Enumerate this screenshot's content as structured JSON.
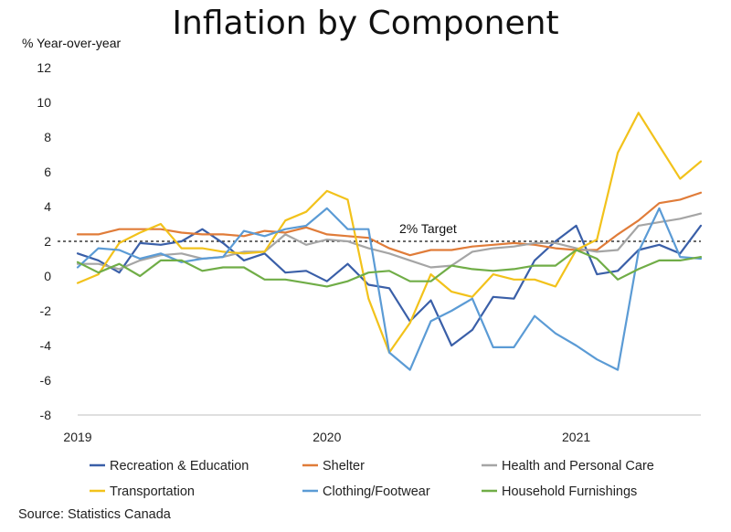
{
  "chart_data": {
    "type": "line",
    "title": "Inflation by Component",
    "ylabel": "% Year-over-year",
    "ylim": [
      -8,
      12
    ],
    "yticks": [
      12,
      10,
      8,
      6,
      4,
      2,
      0,
      -2,
      -4,
      -6,
      -8
    ],
    "x": [
      "2019-01",
      "2019-02",
      "2019-03",
      "2019-04",
      "2019-05",
      "2019-06",
      "2019-07",
      "2019-08",
      "2019-09",
      "2019-10",
      "2019-11",
      "2019-12",
      "2020-01",
      "2020-02",
      "2020-03",
      "2020-04",
      "2020-05",
      "2020-06",
      "2020-07",
      "2020-08",
      "2020-09",
      "2020-10",
      "2020-11",
      "2020-12",
      "2021-01",
      "2021-02",
      "2021-03",
      "2021-04",
      "2021-05",
      "2021-06",
      "2021-07"
    ],
    "xtick_labels": [
      {
        "at": "2019-01",
        "label": "2019"
      },
      {
        "at": "2020-01",
        "label": "2020"
      },
      {
        "at": "2021-01",
        "label": "2021"
      }
    ],
    "grid": false,
    "legend_position": "bottom",
    "series": [
      {
        "name": "Recreation & Education",
        "color": "#3a5fa8",
        "values": [
          1.3,
          0.9,
          0.2,
          1.9,
          1.8,
          2.0,
          2.7,
          1.9,
          0.9,
          1.3,
          0.2,
          0.3,
          -0.3,
          0.7,
          -0.5,
          -0.7,
          -2.6,
          -1.4,
          -4.0,
          -3.1,
          -1.2,
          -1.3,
          0.9,
          2.0,
          2.9,
          0.1,
          0.3,
          1.5,
          1.8,
          1.3,
          2.9
        ]
      },
      {
        "name": "Shelter",
        "color": "#e07c39",
        "values": [
          2.4,
          2.4,
          2.7,
          2.7,
          2.7,
          2.5,
          2.4,
          2.4,
          2.3,
          2.6,
          2.5,
          2.8,
          2.4,
          2.3,
          2.2,
          1.6,
          1.2,
          1.5,
          1.5,
          1.7,
          1.8,
          1.9,
          1.8,
          1.6,
          1.5,
          1.5,
          2.4,
          3.2,
          4.2,
          4.4,
          4.8
        ]
      },
      {
        "name": "Health and Personal Care",
        "color": "#a5a5a5",
        "values": [
          0.7,
          0.7,
          0.4,
          0.9,
          1.2,
          1.3,
          1.0,
          1.1,
          1.4,
          1.4,
          2.4,
          1.8,
          2.1,
          2.0,
          1.6,
          1.3,
          0.9,
          0.5,
          0.6,
          1.4,
          1.6,
          1.7,
          1.9,
          1.9,
          1.6,
          1.4,
          1.5,
          2.9,
          3.1,
          3.3,
          3.6
        ]
      },
      {
        "name": "Transportation",
        "color": "#f2c21b",
        "values": [
          -0.4,
          0.1,
          1.9,
          2.5,
          3.0,
          1.6,
          1.6,
          1.4,
          1.3,
          1.4,
          3.2,
          3.7,
          4.9,
          4.4,
          -1.3,
          -4.4,
          -2.7,
          0.1,
          -0.9,
          -1.2,
          0.1,
          -0.2,
          -0.2,
          -0.6,
          1.5,
          2.1,
          7.1,
          9.4,
          7.5,
          5.6,
          6.6
        ]
      },
      {
        "name": "Clothing/Footwear",
        "color": "#5b9bd5",
        "values": [
          0.5,
          1.6,
          1.5,
          1.0,
          1.3,
          0.8,
          1.0,
          1.1,
          2.6,
          2.3,
          2.7,
          2.9,
          3.9,
          2.7,
          2.7,
          -4.4,
          -5.4,
          -2.6,
          -2.0,
          -1.3,
          -4.1,
          -4.1,
          -2.3,
          -3.3,
          -4.0,
          -4.8,
          -5.4,
          1.4,
          3.9,
          1.1,
          1.0
        ]
      },
      {
        "name": "Household Furnishings",
        "color": "#70ad47",
        "values": [
          0.8,
          0.2,
          0.7,
          0.0,
          0.9,
          0.9,
          0.3,
          0.5,
          0.5,
          -0.2,
          -0.2,
          -0.4,
          -0.6,
          -0.3,
          0.2,
          0.3,
          -0.3,
          -0.3,
          0.6,
          0.4,
          0.3,
          0.4,
          0.6,
          0.6,
          1.5,
          1.0,
          -0.2,
          0.4,
          0.9,
          0.9,
          1.1
        ]
      }
    ],
    "target_line": {
      "value": 2,
      "label": "2% Target"
    },
    "source": "Source: Statistics Canada"
  }
}
